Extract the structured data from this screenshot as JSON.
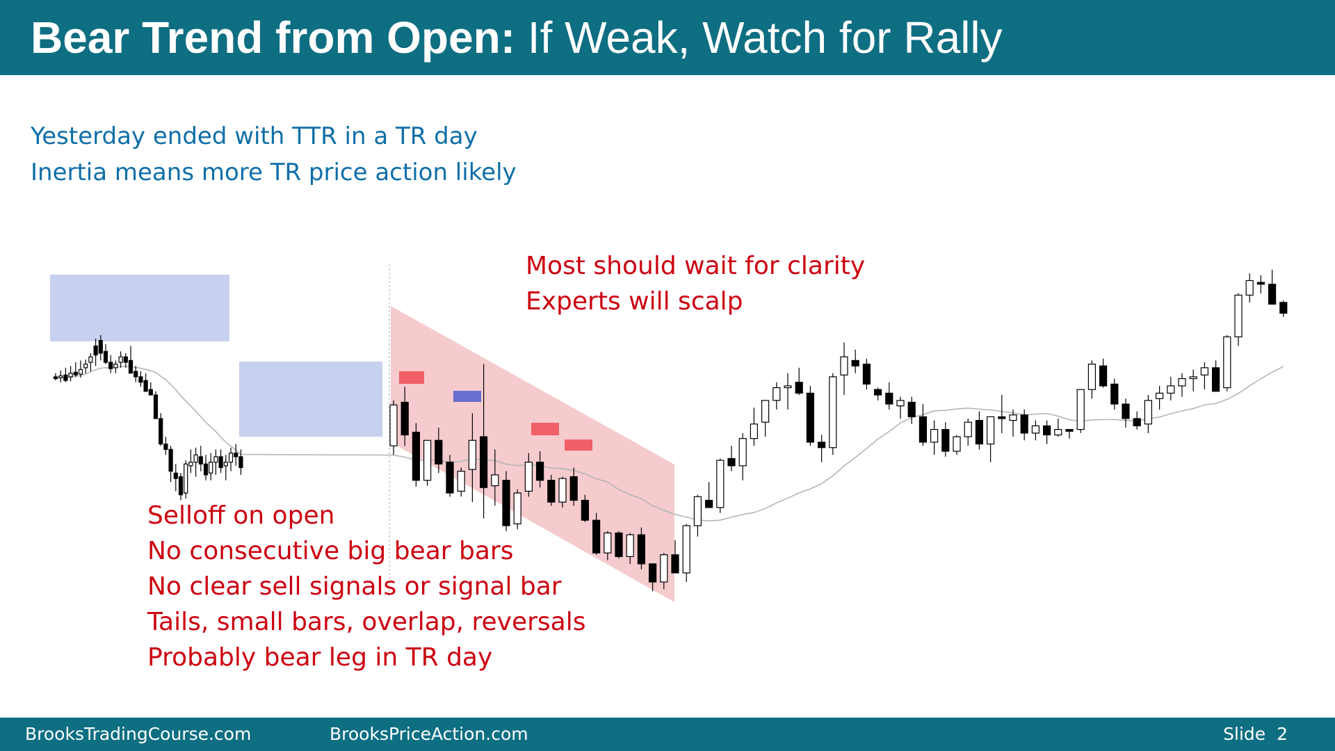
{
  "header": {
    "title_bold": "Bear Trend from Open:",
    "title_rest": "If Weak, Watch for Rally",
    "background": "#0e6e82"
  },
  "intro": {
    "line1": "Yesterday ended with TTR in a TR day",
    "line2": "Inertia means more TR price action likely",
    "color": "#0e6ea8"
  },
  "notes": {
    "top": [
      "Most should wait for clarity",
      "Experts will scalp"
    ],
    "bottom": [
      "Selloff on open",
      "No consecutive big bear bars",
      "No clear sell signals or signal bar",
      "Tails, small bars, overlap, reversals",
      "Probably bear leg in TR day"
    ],
    "color": "#cc0010"
  },
  "footer": {
    "site1": "BrooksTradingCourse.com",
    "site2": "BrooksPriceAction.com",
    "slide_label": "Slide",
    "slide_number": "2"
  },
  "chart_data": {
    "type": "candlestick",
    "note": "Price bars (open, high, low, close) in relative price units; higher value = higher price. Moving average shown as thin gray line.",
    "yesterday": [
      [
        376,
        380,
        372,
        374
      ],
      [
        375,
        383,
        370,
        377
      ],
      [
        378,
        386,
        370,
        372
      ],
      [
        376,
        388,
        371,
        380
      ],
      [
        381,
        392,
        376,
        378
      ],
      [
        379,
        394,
        375,
        384
      ],
      [
        386,
        395,
        380,
        390
      ],
      [
        392,
        402,
        382,
        398
      ],
      [
        410,
        418,
        388,
        400
      ],
      [
        416,
        422,
        394,
        402
      ],
      [
        404,
        412,
        390,
        392
      ],
      [
        392,
        400,
        380,
        385
      ],
      [
        386,
        394,
        380,
        390
      ],
      [
        392,
        404,
        386,
        398
      ],
      [
        398,
        402,
        386,
        392
      ],
      [
        394,
        410,
        385,
        380
      ],
      [
        382,
        388,
        370,
        376
      ],
      [
        376,
        382,
        365,
        370
      ],
      [
        372,
        380,
        362,
        360
      ],
      [
        362,
        370,
        356,
        356
      ],
      [
        356,
        360,
        330,
        330
      ],
      [
        330,
        336,
        300,
        302
      ],
      [
        302,
        310,
        290,
        296
      ],
      [
        296,
        300,
        260,
        272
      ],
      [
        270,
        280,
        250,
        264
      ],
      [
        266,
        270,
        240,
        246
      ],
      [
        248,
        284,
        242,
        280
      ],
      [
        278,
        296,
        270,
        282
      ],
      [
        282,
        298,
        266,
        290
      ],
      [
        288,
        300,
        272,
        280
      ],
      [
        280,
        290,
        262,
        268
      ],
      [
        270,
        292,
        262,
        282
      ],
      [
        282,
        296,
        268,
        288
      ],
      [
        288,
        296,
        270,
        276
      ],
      [
        278,
        290,
        262,
        282
      ],
      [
        282,
        298,
        272,
        292
      ],
      [
        292,
        302,
        278,
        288
      ],
      [
        288,
        296,
        268,
        276
      ]
    ],
    "today": [
      [
        300,
        350,
        290,
        345
      ],
      [
        348,
        365,
        300,
        312
      ],
      [
        315,
        325,
        255,
        262
      ],
      [
        262,
        306,
        256,
        306
      ],
      [
        306,
        320,
        270,
        280
      ],
      [
        282,
        290,
        244,
        248
      ],
      [
        250,
        276,
        244,
        272
      ],
      [
        274,
        336,
        238,
        306
      ],
      [
        310,
        390,
        220,
        254
      ],
      [
        256,
        296,
        234,
        268
      ],
      [
        262,
        272,
        206,
        212
      ],
      [
        214,
        252,
        208,
        248
      ],
      [
        250,
        292,
        244,
        282
      ],
      [
        282,
        294,
        254,
        262
      ],
      [
        262,
        268,
        234,
        238
      ],
      [
        238,
        266,
        232,
        264
      ],
      [
        266,
        276,
        234,
        240
      ],
      [
        240,
        246,
        216,
        218
      ],
      [
        218,
        226,
        180,
        182
      ],
      [
        182,
        206,
        174,
        204
      ],
      [
        204,
        206,
        176,
        178
      ],
      [
        178,
        204,
        170,
        202
      ],
      [
        202,
        210,
        164,
        170
      ],
      [
        170,
        170,
        140,
        150
      ],
      [
        150,
        182,
        142,
        180
      ],
      [
        180,
        196,
        160,
        160
      ],
      [
        160,
        214,
        150,
        212
      ],
      [
        212,
        246,
        200,
        244
      ],
      [
        240,
        260,
        234,
        232
      ],
      [
        232,
        286,
        226,
        284
      ],
      [
        286,
        300,
        272,
        278
      ],
      [
        278,
        314,
        262,
        308
      ],
      [
        308,
        342,
        300,
        324
      ],
      [
        326,
        348,
        310,
        350
      ],
      [
        350,
        370,
        340,
        364
      ],
      [
        364,
        380,
        340,
        366
      ],
      [
        370,
        386,
        356,
        358
      ],
      [
        358,
        366,
        300,
        304
      ],
      [
        304,
        312,
        282,
        298
      ],
      [
        298,
        380,
        290,
        376
      ],
      [
        378,
        414,
        356,
        398
      ],
      [
        394,
        406,
        380,
        388
      ],
      [
        390,
        396,
        362,
        368
      ],
      [
        362,
        364,
        350,
        356
      ],
      [
        358,
        370,
        340,
        346
      ],
      [
        344,
        354,
        330,
        350
      ],
      [
        348,
        354,
        324,
        332
      ],
      [
        332,
        346,
        300,
        304
      ],
      [
        304,
        328,
        290,
        318
      ],
      [
        318,
        326,
        288,
        294
      ],
      [
        294,
        312,
        290,
        310
      ],
      [
        310,
        330,
        300,
        326
      ],
      [
        328,
        338,
        296,
        302
      ],
      [
        302,
        332,
        282,
        332
      ],
      [
        332,
        356,
        314,
        330
      ],
      [
        328,
        340,
        310,
        334
      ],
      [
        334,
        340,
        306,
        314
      ],
      [
        314,
        328,
        306,
        322
      ],
      [
        322,
        328,
        302,
        312
      ],
      [
        312,
        330,
        310,
        318
      ],
      [
        318,
        318,
        308,
        316
      ],
      [
        318,
        362,
        314,
        362
      ],
      [
        362,
        394,
        352,
        390
      ],
      [
        388,
        396,
        364,
        366
      ],
      [
        368,
        374,
        340,
        346
      ],
      [
        346,
        352,
        320,
        330
      ],
      [
        330,
        338,
        318,
        322
      ],
      [
        324,
        356,
        314,
        350
      ],
      [
        352,
        366,
        340,
        358
      ],
      [
        358,
        376,
        350,
        366
      ],
      [
        366,
        380,
        354,
        374
      ],
      [
        374,
        384,
        360,
        376
      ],
      [
        378,
        392,
        362,
        386
      ],
      [
        386,
        394,
        362,
        360
      ],
      [
        364,
        422,
        360,
        420
      ],
      [
        420,
        468,
        410,
        466
      ],
      [
        466,
        490,
        458,
        482
      ],
      [
        480,
        488,
        468,
        478
      ],
      [
        478,
        494,
        460,
        456
      ],
      [
        458,
        460,
        442,
        446
      ]
    ]
  }
}
